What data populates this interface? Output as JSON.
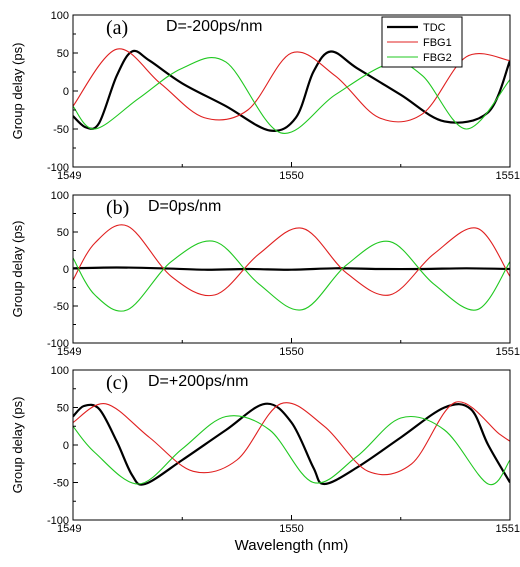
{
  "chart_data": [
    {
      "type": "line",
      "panel_label": "(a)",
      "annotation": "D=-200ps/nm",
      "ylabel": "Group delay (ps)",
      "xlabel": "",
      "xlim": [
        1549,
        1551
      ],
      "ylim": [
        -100,
        100
      ],
      "xticks": [
        "1549",
        "1550",
        "1551"
      ],
      "yticks": [
        "-100",
        "-50",
        "0",
        "50",
        "100"
      ],
      "legend": {
        "placement": "top-right",
        "entries": [
          "TDC",
          "FBG1",
          "FBG2"
        ]
      },
      "series": [
        {
          "name": "TDC",
          "color": "#000000",
          "x": [
            1549,
            1549.06,
            1549.12,
            1549.2,
            1549.27,
            1549.35,
            1549.5,
            1549.7,
            1549.9,
            1550.02,
            1550.1,
            1550.18,
            1550.3,
            1550.5,
            1550.7,
            1550.9,
            1551
          ],
          "y": [
            -33,
            -48,
            -42,
            20,
            52,
            40,
            10,
            -20,
            -52,
            -35,
            25,
            52,
            30,
            -5,
            -40,
            -28,
            40
          ]
        },
        {
          "name": "FBG1",
          "color": "#e02020",
          "x": [
            1549,
            1549.2,
            1549.4,
            1549.6,
            1549.8,
            1550,
            1550.2,
            1550.4,
            1550.6,
            1550.8,
            1551
          ],
          "y": [
            -20,
            55,
            10,
            -35,
            -25,
            50,
            20,
            -35,
            -30,
            45,
            40
          ]
        },
        {
          "name": "FBG2",
          "color": "#20c820",
          "x": [
            1549,
            1549.1,
            1549.3,
            1549.5,
            1549.7,
            1549.95,
            1550.2,
            1550.45,
            1550.6,
            1550.8,
            1551
          ],
          "y": [
            -20,
            -50,
            -10,
            30,
            38,
            -55,
            -5,
            36,
            20,
            -50,
            15
          ]
        }
      ]
    },
    {
      "type": "line",
      "panel_label": "(b)",
      "annotation": "D=0ps/nm",
      "ylabel": "Group delay (ps)",
      "xlabel": "",
      "xlim": [
        1549,
        1551
      ],
      "ylim": [
        -100,
        100
      ],
      "xticks": [
        "1549",
        "1550",
        "1551"
      ],
      "yticks": [
        "-100",
        "-50",
        "0",
        "50",
        "100"
      ],
      "series": [
        {
          "name": "TDC",
          "color": "#000000",
          "x": [
            1549,
            1549.2,
            1549.4,
            1549.6,
            1549.8,
            1550,
            1550.2,
            1550.4,
            1550.6,
            1550.8,
            1551
          ],
          "y": [
            1,
            2,
            1,
            -1,
            0,
            -1,
            1,
            0,
            0,
            1,
            0
          ]
        },
        {
          "name": "FBG1",
          "color": "#e02020",
          "x": [
            1549,
            1549.1,
            1549.25,
            1549.45,
            1549.65,
            1549.85,
            1550.05,
            1550.25,
            1550.45,
            1550.65,
            1550.85,
            1551
          ],
          "y": [
            -15,
            35,
            58,
            -10,
            -35,
            20,
            55,
            -5,
            -35,
            20,
            55,
            -10
          ]
        },
        {
          "name": "FBG2",
          "color": "#20c820",
          "x": [
            1549,
            1549.1,
            1549.25,
            1549.45,
            1549.65,
            1549.85,
            1550.05,
            1550.25,
            1550.45,
            1550.65,
            1550.85,
            1551
          ],
          "y": [
            15,
            -35,
            -55,
            10,
            37,
            -20,
            -55,
            5,
            37,
            -20,
            -55,
            10
          ]
        }
      ]
    },
    {
      "type": "line",
      "panel_label": "(c)",
      "annotation": "D=+200ps/nm",
      "ylabel": "Group delay (ps)",
      "xlabel": "Wavelength (nm)",
      "xlim": [
        1549,
        1551
      ],
      "ylim": [
        -100,
        100
      ],
      "xticks": [
        "1549",
        "1550",
        "1551"
      ],
      "yticks": [
        "-100",
        "-50",
        "0",
        "50",
        "100"
      ],
      "series": [
        {
          "name": "TDC",
          "color": "#000000",
          "x": [
            1549,
            1549.05,
            1549.12,
            1549.2,
            1549.27,
            1549.33,
            1549.5,
            1549.7,
            1549.88,
            1550.0,
            1550.1,
            1550.15,
            1550.3,
            1550.5,
            1550.7,
            1550.82,
            1550.9,
            1551
          ],
          "y": [
            38,
            52,
            48,
            5,
            -40,
            -52,
            -20,
            20,
            55,
            30,
            -30,
            -52,
            -30,
            10,
            50,
            48,
            0,
            -50
          ]
        },
        {
          "name": "FBG1",
          "color": "#e02020",
          "x": [
            1549,
            1549.15,
            1549.35,
            1549.55,
            1549.75,
            1549.95,
            1550.15,
            1550.35,
            1550.55,
            1550.75,
            1550.95,
            1551
          ],
          "y": [
            30,
            55,
            10,
            -35,
            -20,
            55,
            25,
            -35,
            -25,
            57,
            15,
            5
          ]
        },
        {
          "name": "FBG2",
          "color": "#20c820",
          "x": [
            1549,
            1549.1,
            1549.3,
            1549.5,
            1549.7,
            1549.9,
            1550.1,
            1550.3,
            1550.5,
            1550.7,
            1550.9,
            1551
          ],
          "y": [
            25,
            -10,
            -52,
            -5,
            38,
            20,
            -50,
            -15,
            36,
            20,
            -52,
            -20
          ]
        }
      ]
    }
  ]
}
